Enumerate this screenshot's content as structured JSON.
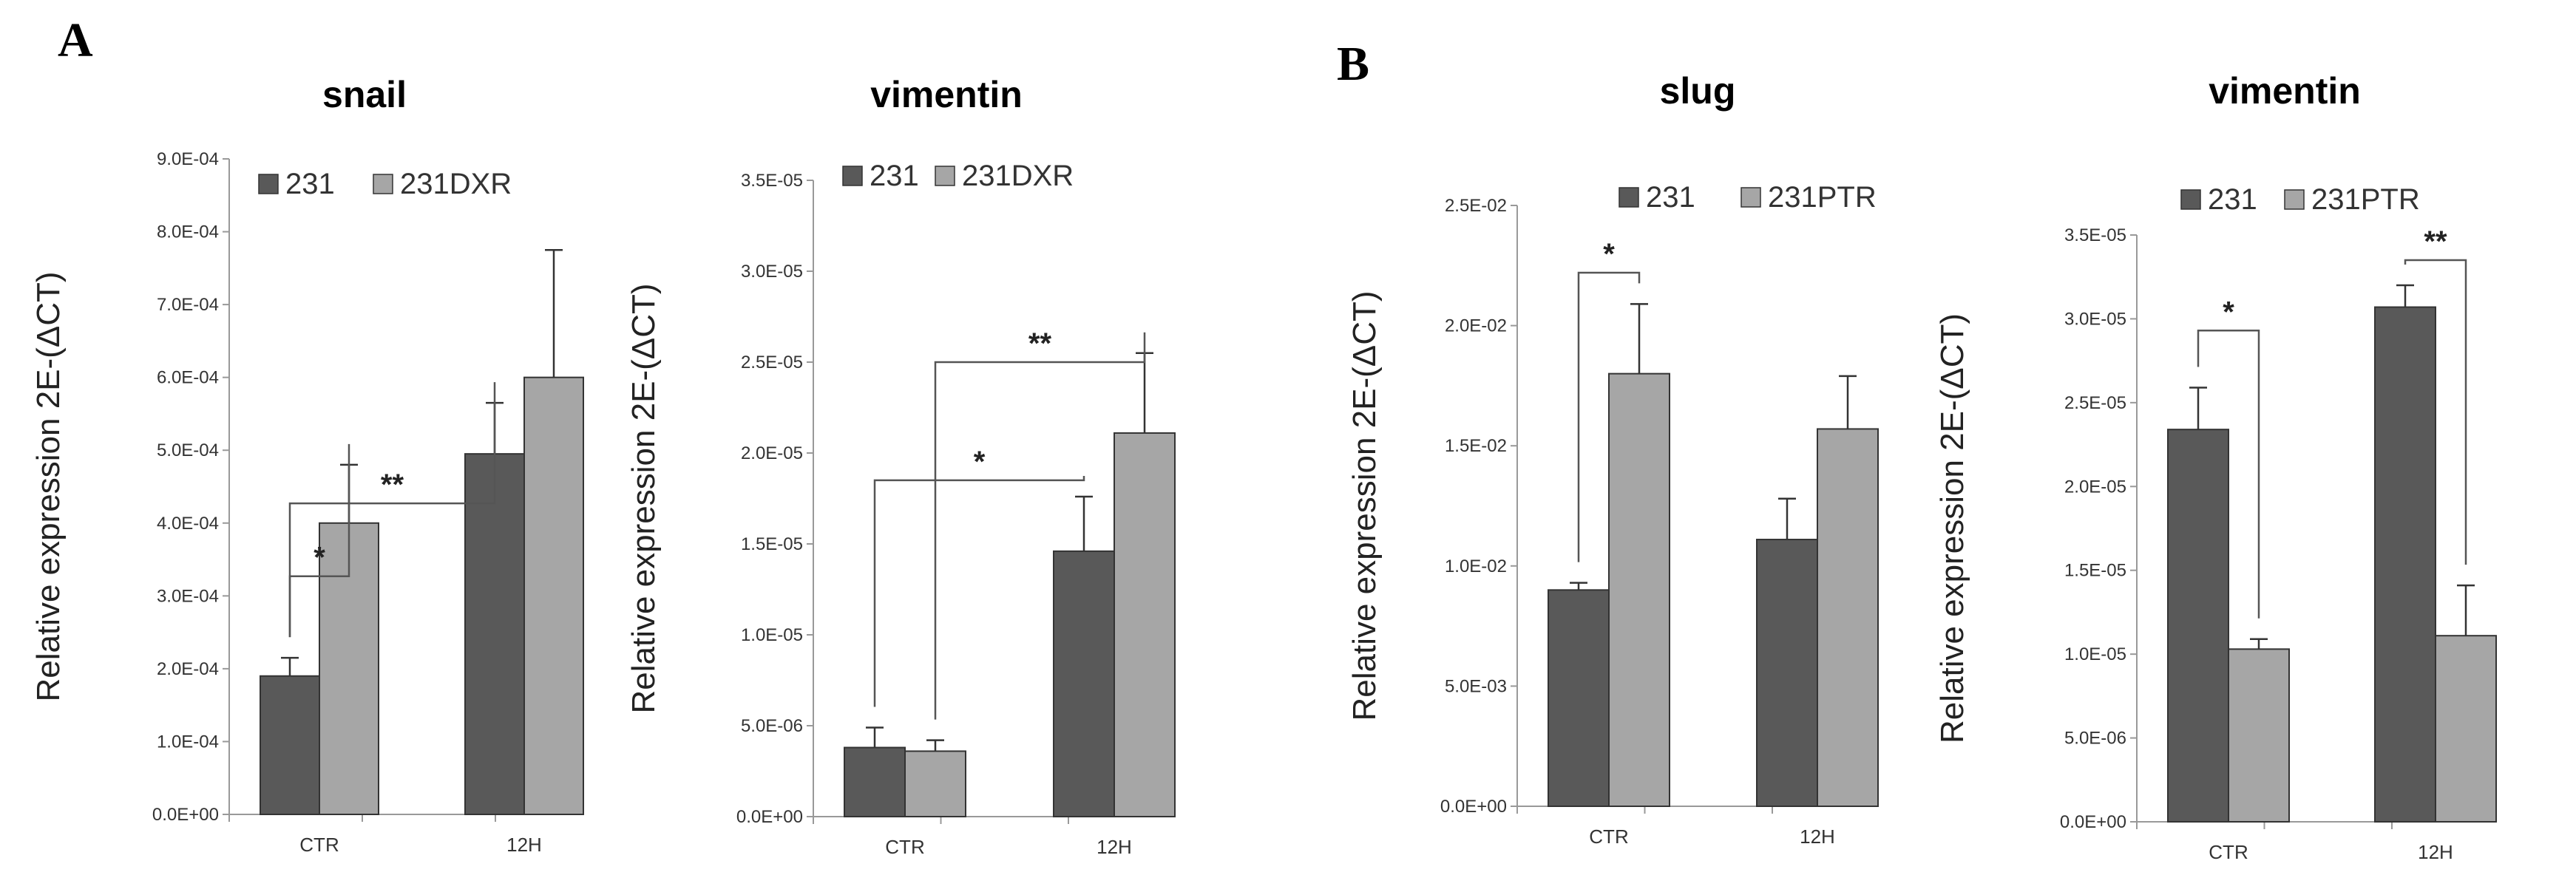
{
  "panels": [
    "A",
    "B"
  ],
  "colors": {
    "dark": "#595959",
    "light": "#a6a6a6"
  },
  "chart_data": [
    {
      "type": "bar",
      "panel": "A",
      "title": "snail",
      "ylabel": "Relative expression 2E-(ΔCT)",
      "xlabel": "",
      "categories": [
        "CTR",
        "12H"
      ],
      "ylim": [
        0,
        0.0009
      ],
      "yticks": [
        0,
        0.0001,
        0.0002,
        0.0003,
        0.0004,
        0.0005,
        0.0006,
        0.0007,
        0.0008,
        0.0009
      ],
      "ytick_labels": [
        "0.0E+00",
        "1.0E-04",
        "2.0E-04",
        "3.0E-04",
        "4.0E-04",
        "5.0E-04",
        "6.0E-04",
        "7.0E-04",
        "8.0E-04",
        "9.0E-04"
      ],
      "legend": "top",
      "series": [
        {
          "name": "231",
          "values": [
            0.00019,
            0.000495
          ],
          "errors": [
            2.5e-05,
            7e-05
          ]
        },
        {
          "name": "231DXR",
          "values": [
            0.0004,
            0.0006
          ],
          "errors": [
            8e-05,
            0.000175
          ]
        }
      ],
      "annotations": [
        {
          "text": "*",
          "from": [
            0,
            0
          ],
          "to": [
            0,
            1
          ],
          "level": 0.000327
        },
        {
          "text": "**",
          "from": [
            0,
            0
          ],
          "to": [
            1,
            0
          ],
          "level": 0.000427
        }
      ]
    },
    {
      "type": "bar",
      "panel": "A",
      "title": "vimentin",
      "ylabel": "Relative expression 2E-(ΔCT)",
      "xlabel": "",
      "categories": [
        "CTR",
        "12H"
      ],
      "ylim": [
        0,
        3.5e-05
      ],
      "yticks": [
        0,
        5e-06,
        1e-05,
        1.5e-05,
        2e-05,
        2.5e-05,
        3e-05,
        3.5e-05
      ],
      "ytick_labels": [
        "0.0E+00",
        "5.0E-06",
        "1.0E-05",
        "1.5E-05",
        "2.0E-05",
        "2.5E-05",
        "3.0E-05",
        "3.5E-05"
      ],
      "legend": "top",
      "series": [
        {
          "name": "231",
          "values": [
            3.8e-06,
            1.46e-05
          ],
          "errors": [
            1.1e-06,
            3e-06
          ]
        },
        {
          "name": "231DXR",
          "values": [
            3.6e-06,
            2.11e-05
          ],
          "errors": [
            6e-07,
            4.4e-06
          ]
        }
      ],
      "annotations": [
        {
          "text": "*",
          "from": [
            0,
            0
          ],
          "to": [
            1,
            0
          ],
          "level": 1.85e-05
        },
        {
          "text": "**",
          "from": [
            0,
            1
          ],
          "to": [
            1,
            1
          ],
          "level": 2.5e-05
        }
      ]
    },
    {
      "type": "bar",
      "panel": "B",
      "title": "slug",
      "ylabel": "Relative expression 2E-(ΔCT)",
      "xlabel": "",
      "categories": [
        "CTR",
        "12H"
      ],
      "ylim": [
        0,
        0.025
      ],
      "yticks": [
        0,
        0.005,
        0.01,
        0.015,
        0.02,
        0.025
      ],
      "ytick_labels": [
        "0.0E+00",
        "5.0E-03",
        "1.0E-02",
        "1.5E-02",
        "2.0E-02",
        "2.5E-02"
      ],
      "legend": "top",
      "series": [
        {
          "name": "231",
          "values": [
            0.009,
            0.0111
          ],
          "errors": [
            0.0003,
            0.0017
          ]
        },
        {
          "name": "231PTR",
          "values": [
            0.018,
            0.0157
          ],
          "errors": [
            0.0029,
            0.0022
          ]
        }
      ],
      "annotations": [
        {
          "text": "*",
          "from": [
            0,
            0
          ],
          "to": [
            0,
            1
          ],
          "level": 0.0222
        }
      ]
    },
    {
      "type": "bar",
      "panel": "B",
      "title": "vimentin",
      "ylabel": "Relative expression 2E-(ΔCT)",
      "xlabel": "",
      "categories": [
        "CTR",
        "12H"
      ],
      "ylim": [
        0,
        3.5e-05
      ],
      "yticks": [
        0,
        5e-06,
        1e-05,
        1.5e-05,
        2e-05,
        2.5e-05,
        3e-05,
        3.5e-05
      ],
      "ytick_labels": [
        "0.0E+00",
        "5.0E-06",
        "1.0E-05",
        "1.5E-05",
        "2.0E-05",
        "2.5E-05",
        "3.0E-05",
        "3.5E-05"
      ],
      "legend": "top",
      "series": [
        {
          "name": "231",
          "values": [
            2.34e-05,
            3.07e-05
          ],
          "errors": [
            2.5e-06,
            1.3e-06
          ]
        },
        {
          "name": "231PTR",
          "values": [
            1.03e-05,
            1.11e-05
          ],
          "errors": [
            6e-07,
            3e-06
          ]
        }
      ],
      "annotations": [
        {
          "text": "*",
          "from": [
            0,
            0
          ],
          "to": [
            0,
            1
          ],
          "level": 2.93e-05
        },
        {
          "text": "**",
          "from": [
            1,
            0
          ],
          "to": [
            1,
            1
          ],
          "level": 3.35e-05
        }
      ]
    }
  ]
}
